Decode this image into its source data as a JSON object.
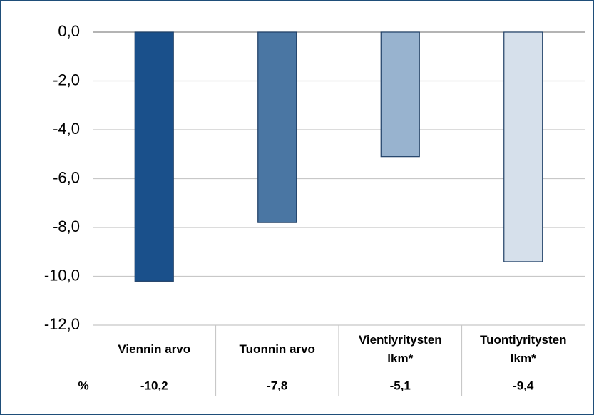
{
  "chart_data": {
    "type": "bar",
    "categories": [
      "Viennin arvo",
      "Tuonnin arvo",
      "Vientiyritysten lkm*",
      "Tuontiyritysten lkm*"
    ],
    "values": [
      -10.2,
      -7.8,
      -5.1,
      -9.4
    ],
    "value_labels": [
      "-10,2",
      "-7,8",
      "-5,1",
      "-9,4"
    ],
    "value_label_unit": "%",
    "colors": [
      "#1a508b",
      "#4a76a3",
      "#98b3cf",
      "#d6e0eb"
    ],
    "ylim": [
      -12,
      0
    ],
    "yticks": [
      {
        "value": 0,
        "label": "0,0"
      },
      {
        "value": -2,
        "label": "-2,0"
      },
      {
        "value": -4,
        "label": "-4,0"
      },
      {
        "value": -6,
        "label": "-6,0"
      },
      {
        "value": -8,
        "label": "-8,0"
      },
      {
        "value": -10,
        "label": "-10,0"
      },
      {
        "value": -12,
        "label": "-12,0"
      }
    ],
    "grid": true
  }
}
